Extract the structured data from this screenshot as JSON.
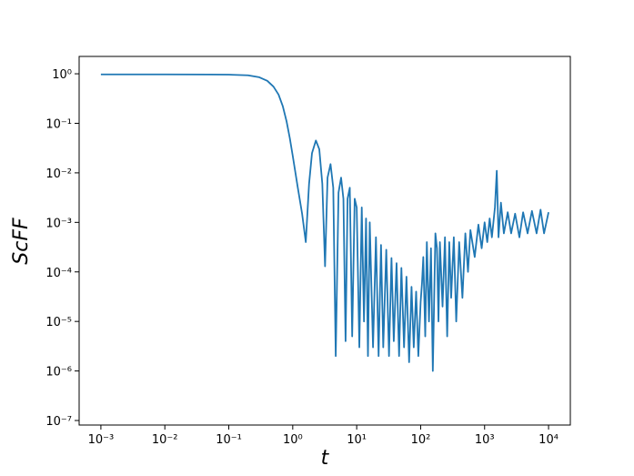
{
  "chart_data": {
    "type": "line",
    "x_label": "t",
    "y_label": "ScFF",
    "log_x": true,
    "log_y": true,
    "xlim": [
      0.000457,
      21900
    ],
    "ylim": [
      8.1e-08,
      2.24
    ],
    "xticks": [
      {
        "value": 0.001,
        "label": "10⁻³"
      },
      {
        "value": 0.01,
        "label": "10⁻²"
      },
      {
        "value": 0.1,
        "label": "10⁻¹"
      },
      {
        "value": 1,
        "label": "10⁰"
      },
      {
        "value": 10,
        "label": "10¹"
      },
      {
        "value": 100,
        "label": "10²"
      },
      {
        "value": 1000,
        "label": "10³"
      },
      {
        "value": 10000,
        "label": "10⁴"
      }
    ],
    "yticks": [
      {
        "value": 1e-07,
        "label": "10⁻⁷"
      },
      {
        "value": 1e-06,
        "label": "10⁻⁶"
      },
      {
        "value": 1e-05,
        "label": "10⁻⁵"
      },
      {
        "value": 0.0001,
        "label": "10⁻⁴"
      },
      {
        "value": 0.001,
        "label": "10⁻³"
      },
      {
        "value": 0.01,
        "label": "10⁻²"
      },
      {
        "value": 0.1,
        "label": "10⁻¹"
      },
      {
        "value": 1,
        "label": "10⁰"
      }
    ],
    "series": [
      {
        "color": "#1f77b4",
        "x": [
          0.001,
          0.01,
          0.05,
          0.1,
          0.2,
          0.3,
          0.4,
          0.5,
          0.6,
          0.7,
          0.8,
          0.9,
          1.0,
          1.2,
          1.4,
          1.6,
          1.8,
          2.0,
          2.3,
          2.6,
          2.9,
          3.2,
          3.5,
          3.9,
          4.3,
          4.7,
          5.2,
          5.7,
          6.2,
          6.7,
          7.2,
          7.8,
          8.5,
          9.3,
          10,
          11,
          12,
          13,
          14,
          15,
          16,
          18,
          20,
          22,
          24,
          26,
          29,
          32,
          35,
          38,
          42,
          46,
          50,
          55,
          60,
          66,
          72,
          78,
          85,
          92,
          100,
          105,
          110,
          118,
          125,
          135,
          145,
          155,
          170,
          180,
          190,
          200,
          220,
          240,
          260,
          280,
          300,
          330,
          360,
          400,
          450,
          500,
          550,
          600,
          700,
          800,
          900,
          1000,
          1100,
          1200,
          1300,
          1450,
          1550,
          1650,
          1800,
          2000,
          2300,
          2600,
          3000,
          3500,
          4000,
          4700,
          5500,
          6500,
          7500,
          8500,
          10000
        ],
        "values": [
          0.97,
          0.97,
          0.965,
          0.96,
          0.93,
          0.85,
          0.72,
          0.55,
          0.38,
          0.22,
          0.11,
          0.05,
          0.022,
          0.005,
          0.0015,
          0.0004,
          0.006,
          0.025,
          0.045,
          0.03,
          0.006,
          0.00013,
          0.008,
          0.015,
          0.005,
          2e-06,
          0.004,
          0.008,
          0.003,
          4e-06,
          0.003,
          0.005,
          5e-06,
          0.003,
          0.002,
          3e-06,
          0.002,
          1e-05,
          0.0012,
          2e-06,
          0.001,
          3e-06,
          0.0005,
          2e-06,
          0.00035,
          3e-06,
          0.00028,
          2e-06,
          0.00019,
          4e-06,
          0.00015,
          2e-06,
          0.00012,
          3e-06,
          8e-05,
          1.5e-06,
          5e-05,
          3e-06,
          4e-05,
          2e-06,
          2.5e-05,
          6e-05,
          0.0002,
          5e-06,
          0.0004,
          1e-05,
          0.0003,
          1e-06,
          0.0006,
          0.0003,
          1e-05,
          0.0004,
          2e-05,
          0.0005,
          5e-06,
          0.0004,
          3e-05,
          0.0005,
          1e-05,
          0.0004,
          3e-05,
          0.0006,
          0.0001,
          0.0007,
          0.0002,
          0.0009,
          0.0003,
          0.001,
          0.0004,
          0.0012,
          0.0005,
          0.002,
          0.011,
          0.0005,
          0.0025,
          0.0006,
          0.0016,
          0.0006,
          0.0015,
          0.0005,
          0.0016,
          0.0006,
          0.0017,
          0.0006,
          0.0018,
          0.0006,
          0.0016
        ]
      }
    ]
  }
}
